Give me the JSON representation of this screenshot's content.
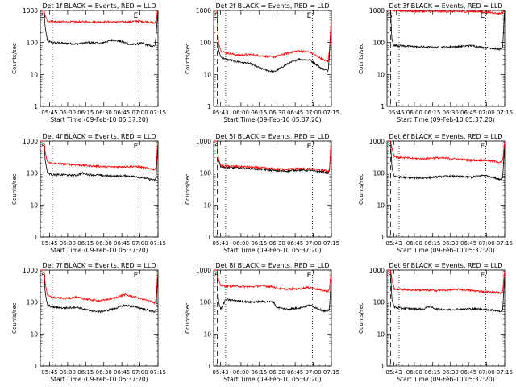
{
  "figure": {
    "ylabel": "Counts/sec",
    "xlabel": "Start Time (09-Feb-10 05:37:20)",
    "marker_s": "S",
    "marker_e": "E",
    "color_events": "#000000",
    "color_lld": "#ff0000",
    "y_tick_labels": [
      "1",
      "10",
      "100",
      "1000"
    ]
  },
  "chart_data": [
    {
      "type": "line",
      "title": "Det 1f BLACK = Events, RED = LLD",
      "xlabel": "Start Time (09-Feb-10 05:37:20)",
      "ylabel": "Counts/sec",
      "yscale": "log",
      "ylim": [
        1,
        1000
      ],
      "x_tick_labels": [
        "05:45",
        "06:00",
        "06:15",
        "06:30",
        "06:45",
        "07:00",
        "07:15"
      ],
      "x_ticks_min": [
        7.67,
        22.67,
        37.67,
        52.67,
        67.67,
        82.67,
        97.67
      ],
      "xlim_min": [
        0,
        97.67
      ],
      "dashed_line_min": 3,
      "dotted_lines_min": [
        10,
        82
      ],
      "series": [
        {
          "name": "Events",
          "color": "#000000",
          "x_min": [
            0,
            3,
            4,
            6,
            10,
            20,
            30,
            40,
            50,
            60,
            68,
            75,
            85,
            90,
            95,
            96,
            97.5
          ],
          "values": [
            1000,
            1000,
            300,
            110,
            100,
            95,
            90,
            100,
            95,
            120,
            105,
            85,
            95,
            80,
            75,
            150,
            900
          ]
        },
        {
          "name": "LLD",
          "color": "#ff0000",
          "x_min": [
            0,
            3,
            4,
            6,
            10,
            20,
            40,
            60,
            75,
            80,
            90,
            95,
            96,
            97.5
          ],
          "values": [
            1000,
            1000,
            700,
            470,
            450,
            440,
            440,
            440,
            440,
            470,
            440,
            400,
            450,
            1000
          ]
        }
      ]
    },
    {
      "type": "line",
      "title": "Det 2f BLACK = Events, RED = LLD",
      "xlabel": "Start Time (09-Feb-10 05:37:20)",
      "ylabel": "Counts/sec",
      "yscale": "log",
      "ylim": [
        1,
        1000
      ],
      "x_tick_labels": [
        "05:43",
        "06:00",
        "06:15",
        "06:30",
        "06:45",
        "07:00",
        "07:15"
      ],
      "x_ticks_min": [
        5.67,
        22.67,
        37.67,
        52.67,
        67.67,
        82.67,
        97.67
      ],
      "xlim_min": [
        0,
        97.67
      ],
      "dashed_line_min": 3,
      "dotted_lines_min": [
        10,
        82
      ],
      "series": [
        {
          "name": "Events",
          "color": "#000000",
          "x_min": [
            0,
            3,
            4,
            6,
            10,
            20,
            30,
            40,
            50,
            60,
            70,
            80,
            90,
            95,
            96,
            97.5
          ],
          "values": [
            1000,
            1000,
            60,
            35,
            30,
            25,
            22,
            15,
            12,
            20,
            30,
            28,
            15,
            13,
            40,
            400
          ]
        },
        {
          "name": "LLD",
          "color": "#ff0000",
          "x_min": [
            0,
            3,
            4,
            6,
            10,
            20,
            30,
            40,
            50,
            60,
            70,
            80,
            90,
            95,
            96,
            97.5
          ],
          "values": [
            1000,
            1000,
            100,
            55,
            48,
            40,
            42,
            38,
            35,
            45,
            55,
            50,
            30,
            25,
            60,
            500
          ]
        }
      ]
    },
    {
      "type": "line",
      "title": "Det 3f BLACK = Events, RED = LLD",
      "xlabel": "Start Time (09-Feb-10 05:37:20)",
      "ylabel": "Counts/sec",
      "yscale": "log",
      "ylim": [
        1,
        1000
      ],
      "x_tick_labels": [
        "05:45",
        "06:00",
        "06:15",
        "06:30",
        "06:45",
        "07:00",
        "07:15"
      ],
      "x_ticks_min": [
        7.67,
        22.67,
        37.67,
        52.67,
        67.67,
        82.67,
        97.67
      ],
      "xlim_min": [
        0,
        97.67
      ],
      "dashed_line_min": 3,
      "dotted_lines_min": [
        10,
        82
      ],
      "series": [
        {
          "name": "Events",
          "color": "#000000",
          "x_min": [
            0,
            3,
            4,
            6,
            10,
            20,
            40,
            60,
            70,
            80,
            90,
            95,
            96,
            97.5
          ],
          "values": [
            1000,
            1000,
            120,
            80,
            80,
            75,
            70,
            75,
            80,
            70,
            65,
            60,
            75,
            1000
          ]
        },
        {
          "name": "LLD",
          "color": "#ff0000",
          "x_min": [
            0,
            3,
            4,
            6,
            10,
            20,
            40,
            60,
            75,
            85,
            90,
            95,
            96,
            97.5
          ],
          "values": [
            1000,
            1000,
            1000,
            1000,
            980,
            950,
            930,
            920,
            930,
            880,
            830,
            800,
            900,
            1000
          ]
        }
      ]
    },
    {
      "type": "line",
      "title": "Det 4f BLACK = Events, RED = LLD",
      "xlabel": "Start Time (09-Feb-10 05:37:20)",
      "ylabel": "Counts/sec",
      "yscale": "log",
      "ylim": [
        1,
        1000
      ],
      "x_tick_labels": [
        "05:45",
        "06:00",
        "06:15",
        "06:30",
        "06:45",
        "07:00",
        "07:15"
      ],
      "x_ticks_min": [
        7.67,
        22.67,
        37.67,
        52.67,
        67.67,
        82.67,
        97.67
      ],
      "xlim_min": [
        0,
        97.67
      ],
      "dashed_line_min": 3,
      "dotted_lines_min": [
        10,
        82
      ],
      "series": [
        {
          "name": "Events",
          "color": "#000000",
          "x_min": [
            0,
            3,
            4,
            6,
            10,
            20,
            30,
            35,
            40,
            50,
            60,
            70,
            80,
            90,
            95,
            96,
            97.5
          ],
          "values": [
            1000,
            1000,
            250,
            100,
            90,
            88,
            85,
            100,
            90,
            85,
            80,
            82,
            78,
            65,
            60,
            70,
            700
          ]
        },
        {
          "name": "LLD",
          "color": "#ff0000",
          "x_min": [
            0,
            3,
            4,
            6,
            10,
            20,
            30,
            40,
            50,
            60,
            70,
            80,
            90,
            95,
            96,
            97.5
          ],
          "values": [
            1000,
            1000,
            450,
            220,
            200,
            190,
            180,
            170,
            160,
            155,
            160,
            160,
            140,
            130,
            150,
            900
          ]
        }
      ]
    },
    {
      "type": "line",
      "title": "Det 5f BLACK = Events, RED = LLD",
      "xlabel": "Start Time (09-Feb-10 05:37:20)",
      "ylabel": "Counts/sec",
      "yscale": "log",
      "ylim": [
        1,
        1000
      ],
      "x_tick_labels": [
        "05:43",
        "06:00",
        "06:15",
        "06:30",
        "06:45",
        "07:00",
        "07:15"
      ],
      "x_ticks_min": [
        5.67,
        22.67,
        37.67,
        52.67,
        67.67,
        82.67,
        97.67
      ],
      "xlim_min": [
        0,
        97.67
      ],
      "dashed_line_min": 3,
      "dotted_lines_min": [
        10,
        82
      ],
      "series": [
        {
          "name": "Events",
          "color": "#000000",
          "x_min": [
            0,
            3,
            4,
            6,
            10,
            20,
            30,
            40,
            50,
            60,
            70,
            80,
            90,
            95,
            96,
            97.5
          ],
          "values": [
            1000,
            1000,
            250,
            160,
            150,
            145,
            140,
            130,
            120,
            115,
            125,
            120,
            110,
            100,
            110,
            800
          ]
        },
        {
          "name": "LLD",
          "color": "#ff0000",
          "x_min": [
            0,
            3,
            4,
            6,
            10,
            20,
            30,
            40,
            50,
            60,
            70,
            80,
            90,
            95,
            96,
            97.5
          ],
          "values": [
            1000,
            1000,
            280,
            175,
            165,
            160,
            155,
            145,
            135,
            130,
            140,
            135,
            125,
            115,
            125,
            900
          ]
        }
      ]
    },
    {
      "type": "line",
      "title": "Det 6f BLACK = Events, RED = LLD",
      "xlabel": "Start Time (09-Feb-10 05:37:20)",
      "ylabel": "Counts/sec",
      "yscale": "log",
      "ylim": [
        1,
        1000
      ],
      "x_tick_labels": [
        "05:43",
        "06:00",
        "06:15",
        "06:30",
        "06:45",
        "07:00",
        "07:15"
      ],
      "x_ticks_min": [
        5.67,
        22.67,
        37.67,
        52.67,
        67.67,
        82.67,
        97.67
      ],
      "xlim_min": [
        0,
        97.67
      ],
      "dashed_line_min": 3,
      "dotted_lines_min": [
        10,
        82
      ],
      "series": [
        {
          "name": "Events",
          "color": "#000000",
          "x_min": [
            0,
            3,
            4,
            6,
            10,
            20,
            30,
            40,
            50,
            60,
            70,
            80,
            85,
            90,
            95,
            96,
            97.5
          ],
          "values": [
            1000,
            1000,
            150,
            80,
            75,
            72,
            70,
            75,
            80,
            78,
            75,
            85,
            80,
            70,
            62,
            75,
            700
          ]
        },
        {
          "name": "LLD",
          "color": "#ff0000",
          "x_min": [
            0,
            3,
            4,
            6,
            10,
            20,
            30,
            40,
            50,
            60,
            70,
            80,
            85,
            90,
            95,
            96,
            97.5
          ],
          "values": [
            1000,
            1000,
            600,
            340,
            310,
            290,
            280,
            300,
            290,
            270,
            250,
            250,
            240,
            230,
            210,
            250,
            900
          ]
        }
      ]
    },
    {
      "type": "line",
      "title": "Det 7f BLACK = Events, RED = LLD",
      "xlabel": "Start Time (09-Feb-10 05:37:20)",
      "ylabel": "Counts/sec",
      "yscale": "log",
      "ylim": [
        1,
        1000
      ],
      "x_tick_labels": [
        "05:45",
        "06:00",
        "06:15",
        "06:30",
        "06:45",
        "07:00",
        "07:15"
      ],
      "x_ticks_min": [
        7.67,
        22.67,
        37.67,
        52.67,
        67.67,
        82.67,
        97.67
      ],
      "xlim_min": [
        0,
        97.67
      ],
      "dashed_line_min": 3,
      "dotted_lines_min": [
        10,
        82
      ],
      "series": [
        {
          "name": "Events",
          "color": "#000000",
          "x_min": [
            0,
            3,
            4,
            6,
            10,
            20,
            30,
            40,
            50,
            60,
            70,
            80,
            90,
            95,
            96,
            97.5
          ],
          "values": [
            1000,
            1000,
            200,
            80,
            70,
            65,
            70,
            55,
            50,
            60,
            80,
            70,
            55,
            50,
            65,
            600
          ]
        },
        {
          "name": "LLD",
          "color": "#ff0000",
          "x_min": [
            0,
            3,
            4,
            6,
            10,
            20,
            30,
            40,
            50,
            60,
            70,
            80,
            90,
            95,
            96,
            97.5
          ],
          "values": [
            1000,
            1000,
            400,
            160,
            140,
            130,
            140,
            120,
            110,
            130,
            170,
            140,
            110,
            95,
            120,
            900
          ]
        }
      ]
    },
    {
      "type": "line",
      "title": "Det 8f BLACK = Events, RED = LLD",
      "xlabel": "Start Time (09-Feb-10 05:37:20)",
      "ylabel": "Counts/sec",
      "yscale": "log",
      "ylim": [
        1,
        1000
      ],
      "x_tick_labels": [
        "05:43",
        "06:00",
        "06:15",
        "06:30",
        "06:45",
        "07:00",
        "07:15"
      ],
      "x_ticks_min": [
        5.67,
        22.67,
        37.67,
        52.67,
        67.67,
        82.67,
        97.67
      ],
      "xlim_min": [
        0,
        97.67
      ],
      "dashed_line_min": 3,
      "dotted_lines_min": [
        10,
        82
      ],
      "series": [
        {
          "name": "Events",
          "color": "#000000",
          "x_min": [
            0,
            3,
            4,
            6,
            10,
            20,
            30,
            40,
            50,
            52,
            60,
            70,
            80,
            90,
            95,
            96,
            97.5
          ],
          "values": [
            1000,
            1000,
            100,
            60,
            120,
            110,
            100,
            105,
            100,
            70,
            60,
            65,
            80,
            55,
            50,
            60,
            500
          ]
        },
        {
          "name": "LLD",
          "color": "#ff0000",
          "x_min": [
            0,
            3,
            4,
            6,
            10,
            20,
            30,
            40,
            50,
            52,
            60,
            70,
            80,
            90,
            95,
            96,
            97.5
          ],
          "values": [
            1000,
            1000,
            500,
            330,
            320,
            310,
            300,
            320,
            300,
            270,
            250,
            260,
            290,
            230,
            220,
            250,
            900
          ]
        }
      ]
    },
    {
      "type": "line",
      "title": "Det 9f BLACK = Events, RED = LLD",
      "xlabel": "Start Time (09-Feb-10 05:37:20)",
      "ylabel": "Counts/sec",
      "yscale": "log",
      "ylim": [
        1,
        1000
      ],
      "x_tick_labels": [
        "05:43",
        "06:00",
        "06:15",
        "06:30",
        "06:45",
        "07:00",
        "07:15"
      ],
      "x_ticks_min": [
        5.67,
        22.67,
        37.67,
        52.67,
        67.67,
        82.67,
        97.67
      ],
      "xlim_min": [
        0,
        97.67
      ],
      "dashed_line_min": 3,
      "dotted_lines_min": [
        10,
        82
      ],
      "series": [
        {
          "name": "Events",
          "color": "#000000",
          "x_min": [
            0,
            3,
            4,
            6,
            10,
            20,
            30,
            35,
            40,
            50,
            60,
            70,
            80,
            90,
            95,
            96,
            97.5
          ],
          "values": [
            1000,
            1000,
            120,
            70,
            65,
            62,
            60,
            75,
            62,
            58,
            60,
            62,
            60,
            55,
            50,
            60,
            600
          ]
        },
        {
          "name": "LLD",
          "color": "#ff0000",
          "x_min": [
            0,
            3,
            4,
            6,
            10,
            20,
            30,
            40,
            50,
            60,
            70,
            80,
            90,
            95,
            96,
            97.5
          ],
          "values": [
            1000,
            1000,
            500,
            260,
            250,
            240,
            235,
            230,
            235,
            250,
            230,
            210,
            200,
            190,
            230,
            900
          ]
        }
      ]
    }
  ]
}
